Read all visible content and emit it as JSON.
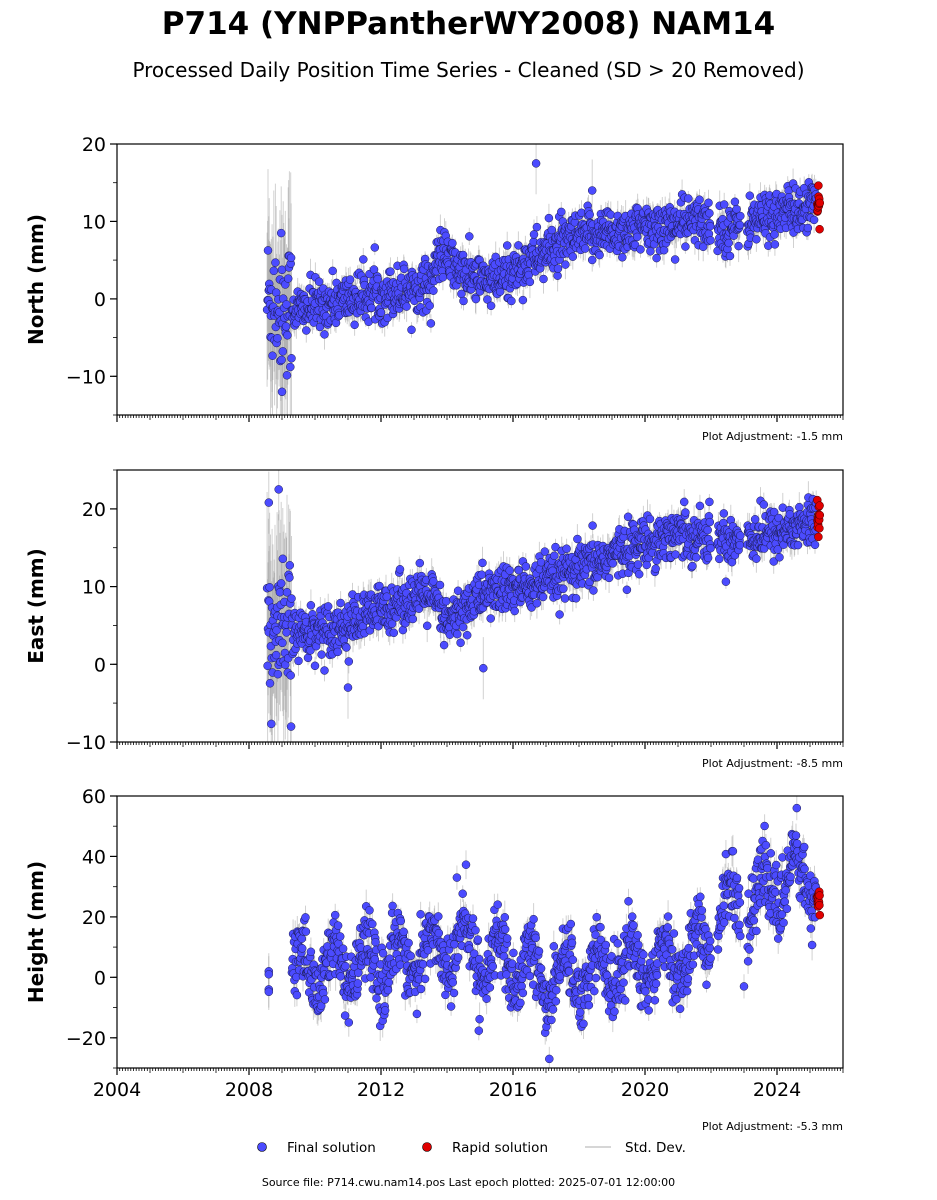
{
  "title": "P714 (YNPPantherWY2008) NAM14",
  "subtitle": "Processed Daily Position Time Series - Cleaned (SD > 20 Removed)",
  "source_note": "Source file: P714.cwu.nam14.pos  Last epoch plotted: 2025-07-01 12:00:00",
  "colors": {
    "final": "#4b4bff",
    "rapid": "#e00000",
    "stddev": "#9a9a9a"
  },
  "legend": {
    "final_label": "Final solution",
    "rapid_label": "Rapid solution",
    "std_label": "Std. Dev."
  },
  "chart_data": [
    {
      "type": "scatter",
      "ylabel": "North (mm)",
      "xlabel": "",
      "xlim": [
        2004,
        2026
      ],
      "ylim": [
        -15,
        20
      ],
      "yticks": [
        "−10",
        "0",
        "10",
        "20"
      ],
      "xticks": [],
      "grid": false,
      "adjustment": "Plot Adjustment: -1.5 mm",
      "trend": [
        [
          2008.6,
          0
        ],
        [
          2009.5,
          -1.5
        ],
        [
          2011.0,
          0.0
        ],
        [
          2012.5,
          1.0
        ],
        [
          2013.5,
          2.0
        ],
        [
          2013.8,
          6.0
        ],
        [
          2014.5,
          3.0
        ],
        [
          2015.5,
          2.0
        ],
        [
          2016.5,
          5.0
        ],
        [
          2017.5,
          7.0
        ],
        [
          2018.5,
          8.5
        ],
        [
          2020.0,
          9.0
        ],
        [
          2021.5,
          10.0
        ],
        [
          2022.5,
          9.0
        ],
        [
          2024.0,
          11.0
        ],
        [
          2025.3,
          12.0
        ]
      ],
      "gaps": [
        [
          2022.0,
          2022.2
        ],
        [
          2022.9,
          2023.1
        ]
      ],
      "outliers": [
        [
          2016.7,
          17.5
        ],
        [
          2018.4,
          14.0
        ],
        [
          2009.0,
          -12.0
        ]
      ]
    },
    {
      "type": "scatter",
      "ylabel": "East (mm)",
      "xlabel": "",
      "xlim": [
        2004,
        2026
      ],
      "ylim": [
        -10,
        25
      ],
      "yticks": [
        "−10",
        "0",
        "10",
        "20"
      ],
      "xticks": [],
      "grid": false,
      "adjustment": "Plot Adjustment: -8.5 mm",
      "trend": [
        [
          2008.6,
          3.0
        ],
        [
          2009.5,
          4.0
        ],
        [
          2011.0,
          5.0
        ],
        [
          2012.5,
          8.0
        ],
        [
          2013.5,
          9.0
        ],
        [
          2014.0,
          5.0
        ],
        [
          2015.0,
          9.0
        ],
        [
          2016.5,
          10.0
        ],
        [
          2018.0,
          12.0
        ],
        [
          2019.5,
          15.0
        ],
        [
          2021.0,
          17.0
        ],
        [
          2022.5,
          16.0
        ],
        [
          2024.0,
          17.0
        ],
        [
          2025.3,
          18.5
        ]
      ],
      "gaps": [
        [
          2022.0,
          2022.2
        ],
        [
          2022.9,
          2023.1
        ]
      ],
      "outliers": [
        [
          2008.9,
          22.5
        ],
        [
          2008.6,
          20.8
        ],
        [
          2015.1,
          -0.5
        ],
        [
          2011.0,
          -3.0
        ]
      ]
    },
    {
      "type": "scatter",
      "ylabel": "Height (mm)",
      "xlabel": "",
      "xlim": [
        2004,
        2026
      ],
      "ylim": [
        -30,
        60
      ],
      "yticks": [
        "−20",
        "0",
        "20",
        "40",
        "60"
      ],
      "xticks": [
        "2004",
        "2008",
        "2012",
        "2016",
        "2020",
        "2024"
      ],
      "grid": false,
      "adjustment": "Plot Adjustment: -5.3 mm",
      "trend": [
        [
          2009.5,
          3.0
        ],
        [
          2011.0,
          3.0
        ],
        [
          2013.0,
          7.0
        ],
        [
          2014.5,
          10.0
        ],
        [
          2016.0,
          3.0
        ],
        [
          2017.0,
          0.0
        ],
        [
          2018.5,
          2.0
        ],
        [
          2020.0,
          5.0
        ],
        [
          2021.5,
          8.0
        ],
        [
          2022.5,
          22.0
        ],
        [
          2024.0,
          30.0
        ],
        [
          2024.8,
          35.0
        ],
        [
          2025.3,
          25.0
        ]
      ],
      "seasonal_amp": 8,
      "gaps": [
        [
          2022.0,
          2022.2
        ],
        [
          2022.9,
          2023.1
        ]
      ],
      "isolated": [
        [
          2008.6,
          2.0
        ],
        [
          2008.6,
          -4.0
        ],
        [
          2008.6,
          -4.8
        ],
        [
          2008.6,
          1.0
        ]
      ],
      "outliers": [
        [
          2024.6,
          56.0
        ],
        [
          2017.1,
          -27.0
        ],
        [
          2023.0,
          -3.0
        ],
        [
          2014.3,
          33.0
        ]
      ]
    }
  ]
}
